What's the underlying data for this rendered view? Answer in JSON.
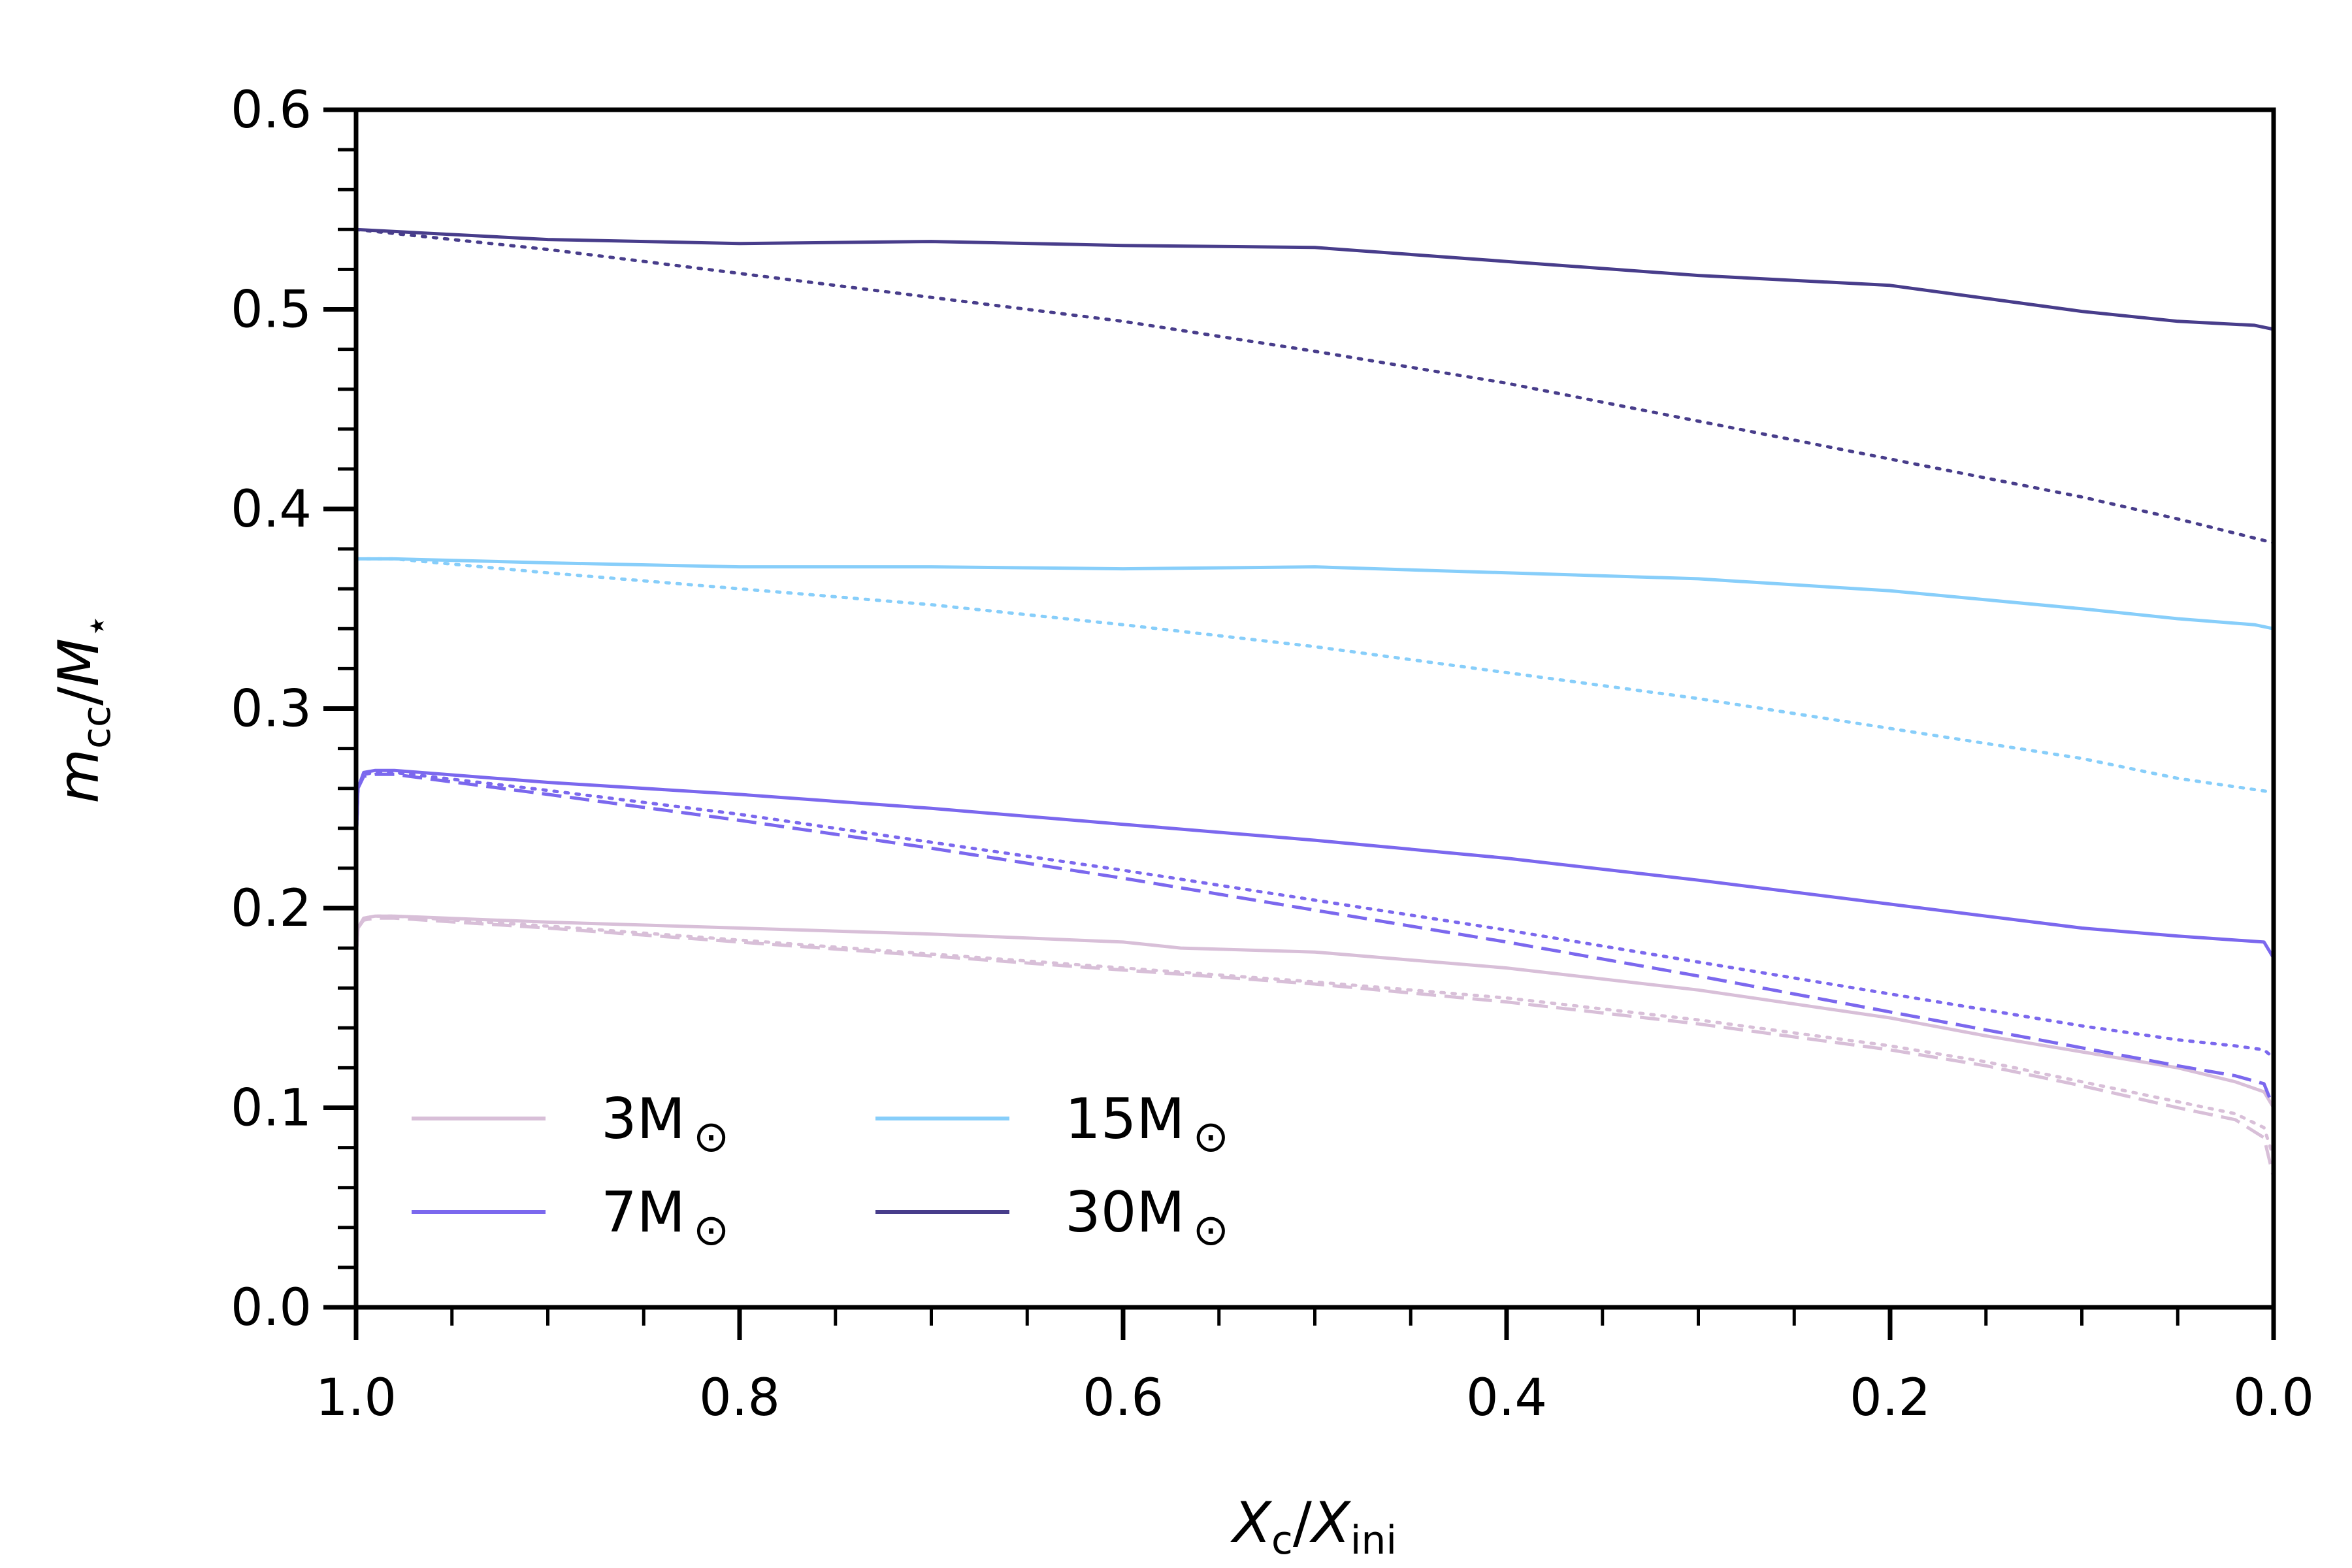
{
  "chart_data": {
    "type": "line",
    "title": "",
    "xlabel": {
      "base": "X",
      "sub": "c",
      "sep": "/",
      "base2": "X",
      "sub2": "ini"
    },
    "ylabel": {
      "base": "m",
      "sub": "cc",
      "sep": "/",
      "base2": "M",
      "sub2": "⋆"
    },
    "xlim": [
      1.0,
      0.0
    ],
    "ylim": [
      0.0,
      0.6
    ],
    "x_inverted": true,
    "xticks": [
      {
        "value": 1.0,
        "label": "1.0"
      },
      {
        "value": 0.8,
        "label": "0.8"
      },
      {
        "value": 0.6,
        "label": "0.6"
      },
      {
        "value": 0.4,
        "label": "0.4"
      },
      {
        "value": 0.2,
        "label": "0.2"
      },
      {
        "value": 0.0,
        "label": "0.0"
      }
    ],
    "yticks": [
      {
        "value": 0.0,
        "label": "0.0"
      },
      {
        "value": 0.1,
        "label": "0.1"
      },
      {
        "value": 0.2,
        "label": "0.2"
      },
      {
        "value": 0.3,
        "label": "0.3"
      },
      {
        "value": 0.4,
        "label": "0.4"
      },
      {
        "value": 0.5,
        "label": "0.5"
      },
      {
        "value": 0.6,
        "label": "0.6"
      }
    ],
    "x_minor_step": 0.05,
    "y_minor_step": 0.02,
    "grid": false,
    "legend": {
      "position": "lower-left",
      "columns": 2,
      "entries": [
        {
          "label": "3M",
          "symbol": "⊙",
          "color": "#d8bfd8"
        },
        {
          "label": "7M",
          "symbol": "⊙",
          "color": "#7b68ee"
        },
        {
          "label": "15M",
          "symbol": "⊙",
          "color": "#87cefa"
        },
        {
          "label": "30M",
          "symbol": "⊙",
          "color": "#483d8b"
        }
      ]
    },
    "series": [
      {
        "name": "3M solid",
        "color": "#d8bfd8",
        "style": "solid",
        "x": [
          1.0,
          0.999,
          0.996,
          0.99,
          0.98,
          0.9,
          0.8,
          0.7,
          0.6,
          0.58,
          0.57,
          0.5,
          0.4,
          0.3,
          0.2,
          0.15,
          0.1,
          0.05,
          0.02,
          0.005,
          0.0
        ],
        "y": [
          0.175,
          0.19,
          0.195,
          0.196,
          0.196,
          0.193,
          0.19,
          0.187,
          0.183,
          0.181,
          0.18,
          0.178,
          0.17,
          0.159,
          0.145,
          0.136,
          0.128,
          0.12,
          0.113,
          0.108,
          0.1
        ]
      },
      {
        "name": "3M dashed",
        "color": "#d8bfd8",
        "style": "dashed",
        "x": [
          1.0,
          0.999,
          0.996,
          0.99,
          0.98,
          0.9,
          0.8,
          0.7,
          0.6,
          0.5,
          0.4,
          0.3,
          0.2,
          0.15,
          0.1,
          0.05,
          0.02,
          0.005,
          0.0
        ],
        "y": [
          0.175,
          0.19,
          0.194,
          0.195,
          0.195,
          0.19,
          0.183,
          0.176,
          0.169,
          0.162,
          0.153,
          0.142,
          0.129,
          0.121,
          0.111,
          0.1,
          0.094,
          0.085,
          0.065
        ]
      },
      {
        "name": "3M dotted",
        "color": "#d8bfd8",
        "style": "dotted",
        "x": [
          1.0,
          0.999,
          0.996,
          0.99,
          0.98,
          0.9,
          0.8,
          0.7,
          0.6,
          0.5,
          0.4,
          0.3,
          0.2,
          0.15,
          0.1,
          0.05,
          0.02,
          0.005,
          0.0
        ],
        "y": [
          0.175,
          0.19,
          0.195,
          0.196,
          0.196,
          0.191,
          0.184,
          0.177,
          0.17,
          0.163,
          0.155,
          0.144,
          0.131,
          0.123,
          0.113,
          0.103,
          0.097,
          0.09,
          0.075
        ]
      },
      {
        "name": "7M solid",
        "color": "#7b68ee",
        "style": "solid",
        "x": [
          1.0,
          0.999,
          0.996,
          0.99,
          0.98,
          0.9,
          0.8,
          0.7,
          0.6,
          0.5,
          0.4,
          0.3,
          0.2,
          0.1,
          0.05,
          0.02,
          0.005,
          0.0
        ],
        "y": [
          0.23,
          0.26,
          0.268,
          0.269,
          0.269,
          0.263,
          0.257,
          0.25,
          0.242,
          0.234,
          0.225,
          0.214,
          0.202,
          0.19,
          0.186,
          0.184,
          0.183,
          0.175
        ]
      },
      {
        "name": "7M dashed",
        "color": "#7b68ee",
        "style": "dashed",
        "x": [
          1.0,
          0.999,
          0.996,
          0.99,
          0.98,
          0.9,
          0.8,
          0.7,
          0.6,
          0.5,
          0.4,
          0.3,
          0.2,
          0.15,
          0.1,
          0.05,
          0.02,
          0.005,
          0.0
        ],
        "y": [
          0.23,
          0.26,
          0.266,
          0.267,
          0.267,
          0.257,
          0.244,
          0.23,
          0.215,
          0.199,
          0.183,
          0.166,
          0.148,
          0.139,
          0.13,
          0.121,
          0.116,
          0.112,
          0.1
        ]
      },
      {
        "name": "7M dotted",
        "color": "#7b68ee",
        "style": "dotted",
        "x": [
          1.0,
          0.999,
          0.996,
          0.99,
          0.98,
          0.9,
          0.8,
          0.7,
          0.6,
          0.5,
          0.4,
          0.3,
          0.2,
          0.15,
          0.1,
          0.05,
          0.02,
          0.005,
          0.0
        ],
        "y": [
          0.23,
          0.26,
          0.267,
          0.268,
          0.268,
          0.259,
          0.247,
          0.233,
          0.219,
          0.204,
          0.189,
          0.173,
          0.157,
          0.149,
          0.141,
          0.134,
          0.131,
          0.129,
          0.125
        ]
      },
      {
        "name": "15M solid",
        "color": "#87cefa",
        "style": "solid",
        "x": [
          1.0,
          0.98,
          0.9,
          0.8,
          0.7,
          0.6,
          0.5,
          0.4,
          0.3,
          0.2,
          0.1,
          0.05,
          0.01,
          0.0
        ],
        "y": [
          0.375,
          0.375,
          0.373,
          0.371,
          0.371,
          0.37,
          0.371,
          0.368,
          0.365,
          0.359,
          0.35,
          0.345,
          0.342,
          0.34
        ]
      },
      {
        "name": "15M dotted",
        "color": "#87cefa",
        "style": "dotted",
        "x": [
          1.0,
          0.98,
          0.9,
          0.8,
          0.7,
          0.6,
          0.5,
          0.4,
          0.3,
          0.2,
          0.1,
          0.05,
          0.0
        ],
        "y": [
          0.375,
          0.375,
          0.368,
          0.36,
          0.352,
          0.342,
          0.331,
          0.318,
          0.305,
          0.29,
          0.275,
          0.265,
          0.258
        ]
      },
      {
        "name": "30M solid",
        "color": "#483d8b",
        "style": "solid",
        "x": [
          1.0,
          0.9,
          0.8,
          0.7,
          0.6,
          0.5,
          0.4,
          0.3,
          0.2,
          0.1,
          0.05,
          0.01,
          0.0
        ],
        "y": [
          0.54,
          0.535,
          0.533,
          0.534,
          0.532,
          0.531,
          0.524,
          0.517,
          0.512,
          0.499,
          0.494,
          0.492,
          0.49
        ]
      },
      {
        "name": "30M dotted",
        "color": "#483d8b",
        "style": "dotted",
        "x": [
          1.0,
          0.9,
          0.8,
          0.7,
          0.6,
          0.5,
          0.4,
          0.3,
          0.2,
          0.1,
          0.05,
          0.0
        ],
        "y": [
          0.54,
          0.53,
          0.518,
          0.506,
          0.494,
          0.479,
          0.463,
          0.444,
          0.425,
          0.406,
          0.395,
          0.383
        ]
      }
    ]
  }
}
